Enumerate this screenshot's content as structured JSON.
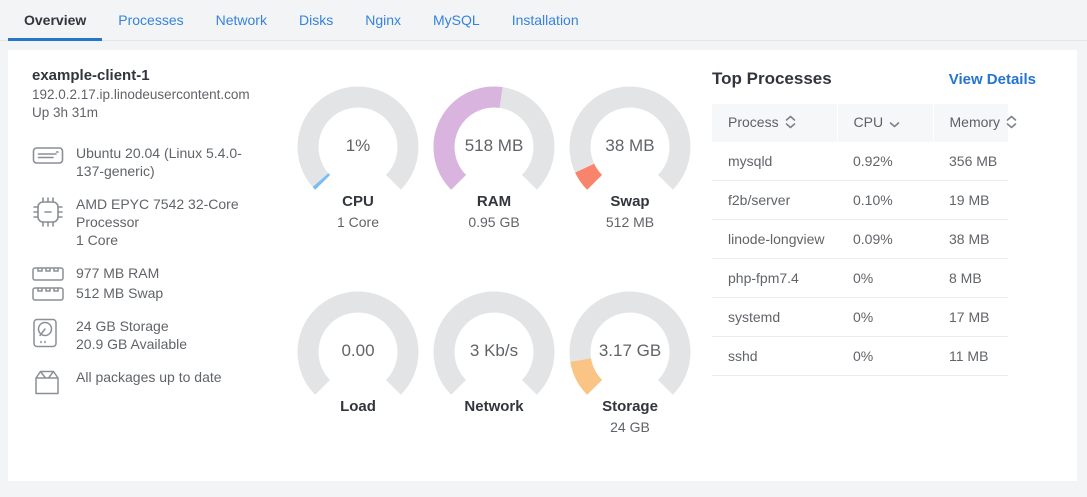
{
  "colors": {
    "accent_blue": "#3683dc",
    "active_underline": "#2575cc",
    "gauge_track": "#e3e4e6",
    "cpu_fill": "#79bdf2",
    "ram_fill": "#d9b4df",
    "swap_fill": "#f8846b",
    "storage_fill": "#f9c484"
  },
  "tabs": {
    "items": [
      {
        "label": "Overview",
        "active": true
      },
      {
        "label": "Processes",
        "active": false
      },
      {
        "label": "Network",
        "active": false
      },
      {
        "label": "Disks",
        "active": false
      },
      {
        "label": "Nginx",
        "active": false
      },
      {
        "label": "MySQL",
        "active": false
      },
      {
        "label": "Installation",
        "active": false
      }
    ]
  },
  "host": {
    "name": "example-client-1",
    "domain": "192.0.2.17.ip.linodeusercontent.com",
    "uptime": "Up 3h 31m",
    "os": "Ubuntu 20.04 (Linux 5.4.0-137-generic)",
    "cpu_model": "AMD EPYC 7542 32-Core Processor",
    "cpu_cores": "1 Core",
    "ram": "977 MB RAM",
    "swap": "512 MB Swap",
    "storage_total": "24 GB Storage",
    "storage_available": "20.9 GB Available",
    "packages": "All packages up to date"
  },
  "gauges": [
    {
      "id": "cpu",
      "value": "1%",
      "title": "CPU",
      "subtitle": "1 Core",
      "fraction": 0.013,
      "color": "#79bdf2"
    },
    {
      "id": "ram",
      "value": "518 MB",
      "title": "RAM",
      "subtitle": "0.95 GB",
      "fraction": 0.53,
      "color": "#d9b4df"
    },
    {
      "id": "swap",
      "value": "38 MB",
      "title": "Swap",
      "subtitle": "512 MB",
      "fraction": 0.074,
      "color": "#f8846b"
    },
    {
      "id": "load",
      "value": "0.00",
      "title": "Load",
      "subtitle": "",
      "fraction": 0,
      "color": null
    },
    {
      "id": "network",
      "value": "3 Kb/s",
      "title": "Network",
      "subtitle": "",
      "fraction": 0,
      "color": null
    },
    {
      "id": "storage",
      "value": "3.17 GB",
      "title": "Storage",
      "subtitle": "24 GB",
      "fraction": 0.132,
      "color": "#f9c484"
    }
  ],
  "processes": {
    "title": "Top Processes",
    "view_details": "View Details",
    "columns": [
      {
        "label": "Process",
        "sort": "both"
      },
      {
        "label": "CPU",
        "sort": "desc"
      },
      {
        "label": "Memory",
        "sort": "both"
      }
    ],
    "rows": [
      {
        "process": "mysqld",
        "cpu": "0.92%",
        "memory": "356 MB"
      },
      {
        "process": "f2b/server",
        "cpu": "0.10%",
        "memory": "19 MB"
      },
      {
        "process": "linode-longview",
        "cpu": "0.09%",
        "memory": "38 MB"
      },
      {
        "process": "php-fpm7.4",
        "cpu": "0%",
        "memory": "8 MB"
      },
      {
        "process": "systemd",
        "cpu": "0%",
        "memory": "17 MB"
      },
      {
        "process": "sshd",
        "cpu": "0%",
        "memory": "11 MB"
      }
    ]
  }
}
